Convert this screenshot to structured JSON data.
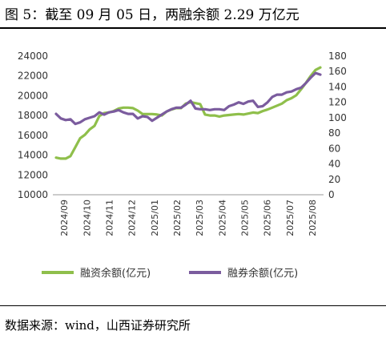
{
  "title": "图 5：截至 09 月 05 日，两融余额 2.29 万亿元",
  "source": "数据来源：wind，山西证券研究所",
  "chart_data": {
    "type": "line",
    "x_ticks": [
      "2024/09",
      "2024/10",
      "2024/11",
      "2024/12",
      "2025/01",
      "2025/02",
      "2025/03",
      "2025/04",
      "2025/05",
      "2025/06",
      "2025/07",
      "2025/08"
    ],
    "y_left": {
      "min": 10000,
      "max": 24000,
      "ticks": [
        "24000",
        "22000",
        "20000",
        "18000",
        "16000",
        "14000",
        "12000",
        "10000"
      ]
    },
    "y_right": {
      "min": 0,
      "max": 180,
      "ticks": [
        "180",
        "160",
        "140",
        "120",
        "100",
        "80",
        "60",
        "40",
        "20",
        "0"
      ]
    },
    "legend_position": "bottom",
    "grid": false,
    "series": [
      {
        "name": "融资余额(亿元)",
        "axis": "left",
        "color": "#8fbf4b",
        "values": [
          13750,
          13650,
          13650,
          13900,
          14800,
          15700,
          16050,
          16600,
          16950,
          17950,
          18250,
          18300,
          18450,
          18700,
          18800,
          18800,
          18750,
          18500,
          18150,
          18150,
          18150,
          18100,
          18000,
          18400,
          18600,
          18750,
          18750,
          19200,
          19350,
          19250,
          19150,
          18100,
          18000,
          18000,
          17900,
          18000,
          18050,
          18100,
          18150,
          18100,
          18200,
          18300,
          18250,
          18450,
          18600,
          18800,
          19000,
          19200,
          19550,
          19750,
          20050,
          20650,
          21300,
          22000,
          22600,
          22850
        ]
      },
      {
        "name": "融券余额(亿元)",
        "axis": "right",
        "color": "#7b5c9e",
        "values": [
          105,
          99,
          97,
          98,
          92,
          94,
          98,
          100,
          102,
          107,
          104,
          107,
          108,
          110,
          107,
          105,
          105,
          99,
          102,
          101,
          96,
          100,
          104,
          108,
          111,
          113,
          113,
          117,
          122,
          112,
          111,
          111,
          110,
          111,
          111,
          110,
          115,
          117,
          120,
          118,
          121,
          122,
          114,
          115,
          120,
          127,
          130,
          130,
          133,
          134,
          137,
          139,
          145,
          152,
          158,
          156
        ]
      }
    ]
  }
}
